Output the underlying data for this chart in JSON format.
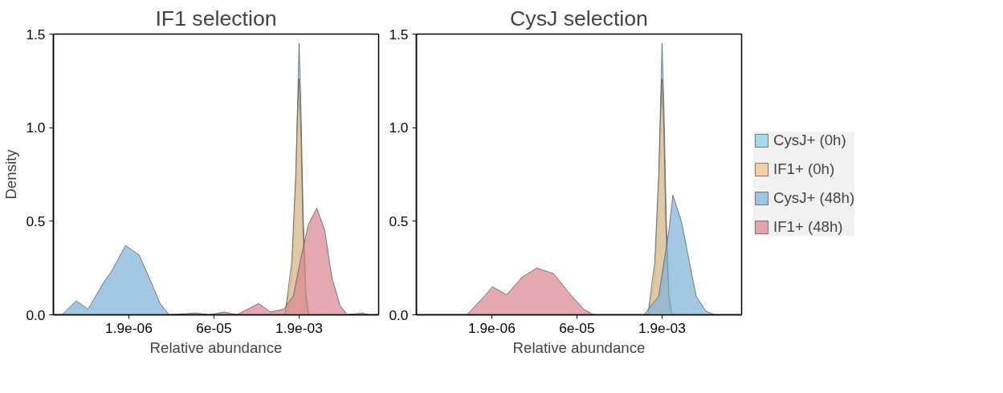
{
  "chart_data": [
    {
      "type": "area",
      "title": "IF1 selection",
      "xlabel": "Relative abundance",
      "ylabel": "Density",
      "log": "x",
      "grid": false,
      "xlim": [
        8.9e-08,
        0.048
      ],
      "ylim": [
        0,
        1.5
      ],
      "xticks": [
        {
          "value": 1.9e-06,
          "label": "1.9e-06"
        },
        {
          "value": 6e-05,
          "label": "6e-05"
        },
        {
          "value": 0.0019,
          "label": "1.9e-03"
        }
      ],
      "yticks": [
        {
          "value": 0,
          "label": "0.0"
        },
        {
          "value": 0.5,
          "label": "0.5"
        },
        {
          "value": 1,
          "label": "1.0"
        },
        {
          "value": 1.5,
          "label": "1.5"
        }
      ],
      "series": [
        {
          "color": "#8ecfe8",
          "x": [
            0.00107,
            0.00141,
            0.00166,
            0.00178,
            0.0019,
            0.00204,
            0.00224,
            0.00251,
            0.00282
          ],
          "values": [
            0,
            0.2,
            0.7,
            1.1,
            1.45,
            1.15,
            0.55,
            0.12,
            0
          ]
        },
        {
          "color": "#f4c28c",
          "x": [
            0.00107,
            0.00141,
            0.00166,
            0.00178,
            0.0019,
            0.00204,
            0.00224,
            0.00251,
            0.00282
          ],
          "values": [
            0,
            0.28,
            0.75,
            1.05,
            1.26,
            1.0,
            0.45,
            0.08,
            0
          ]
        },
        {
          "color": "#7fb3d9",
          "x": [
            1.26e-07,
            2.24e-07,
            3.63e-07,
            6.76e-07,
            9.33e-07,
            1.66e-06,
            2.88e-06,
            4.47e-06,
            6.76e-06,
            9.77e-06
          ],
          "values": [
            0,
            0.075,
            0.03,
            0.17,
            0.23,
            0.37,
            0.32,
            0.19,
            0.06,
            0
          ]
        },
        {
          "color": "#d98790",
          "x": [
            1e-05,
            2.9e-05,
            5e-05,
            9.1e-05,
            0.00015,
            0.00037,
            0.0006,
            0.00102,
            0.0015,
            0.00204,
            0.00275,
            0.0039,
            0.0054,
            0.0072,
            0.01,
            0.0135,
            0.025,
            0.032
          ],
          "values": [
            0,
            0.01,
            0,
            0.015,
            0,
            0.06,
            0.015,
            0.03,
            0.1,
            0.3,
            0.48,
            0.57,
            0.45,
            0.2,
            0.05,
            0,
            0.01,
            0
          ]
        }
      ]
    },
    {
      "type": "area",
      "title": "CysJ selection",
      "xlabel": "Relative abundance",
      "log": "x",
      "grid": false,
      "legend": "right",
      "xlim": [
        8.9e-08,
        0.048
      ],
      "ylim": [
        0,
        1.5
      ],
      "xticks": [
        {
          "value": 1.9e-06,
          "label": "1.9e-06"
        },
        {
          "value": 6e-05,
          "label": "6e-05"
        },
        {
          "value": 0.0019,
          "label": "1.9e-03"
        }
      ],
      "yticks": [
        {
          "value": 0,
          "label": "0.0"
        },
        {
          "value": 0.5,
          "label": "0.5"
        },
        {
          "value": 1,
          "label": "1.0"
        },
        {
          "value": 1.5,
          "label": "1.5"
        }
      ],
      "series": [
        {
          "name": "CysJ+ (0h)",
          "color": "#8ecfe8",
          "x": [
            0.00107,
            0.00141,
            0.00166,
            0.00178,
            0.0019,
            0.00204,
            0.00224,
            0.00251,
            0.00282
          ],
          "values": [
            0,
            0.2,
            0.7,
            1.1,
            1.45,
            1.15,
            0.55,
            0.12,
            0
          ]
        },
        {
          "name": "IF1+ (0h)",
          "color": "#f4c28c",
          "x": [
            0.00107,
            0.00141,
            0.00166,
            0.00178,
            0.0019,
            0.00204,
            0.00224,
            0.00251,
            0.00282
          ],
          "values": [
            0,
            0.28,
            0.75,
            1.05,
            1.26,
            1.0,
            0.45,
            0.08,
            0
          ]
        },
        {
          "name": "CysJ+ (48h)",
          "color": "#7fb3d9",
          "x": [
            0.00091,
            0.00166,
            0.00251,
            0.00295,
            0.00417,
            0.00562,
            0.00759,
            0.0112,
            0.0162
          ],
          "values": [
            0,
            0.1,
            0.45,
            0.64,
            0.5,
            0.3,
            0.1,
            0.02,
            0
          ]
        },
        {
          "name": "IF1+ (48h)",
          "color": "#d98790",
          "x": [
            6.9e-07,
            1.41e-06,
            1.95e-06,
            3.47e-06,
            6.46e-06,
            1.17e-05,
            2.34e-05,
            4.27e-05,
            7.94e-05,
            0.00012
          ],
          "values": [
            0,
            0.1,
            0.15,
            0.107,
            0.2,
            0.25,
            0.22,
            0.12,
            0.03,
            0
          ]
        }
      ]
    }
  ]
}
